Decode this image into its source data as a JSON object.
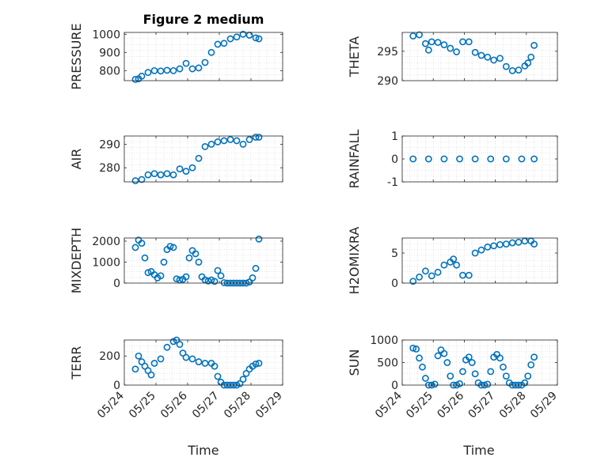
{
  "figure": {
    "title": "Figure 2 medium",
    "xlabel": "Time",
    "marker_color": "#0072BD",
    "xticks": [
      "05/24",
      "05/25",
      "05/26",
      "05/27",
      "05/28",
      "05/29"
    ]
  },
  "chart_data": [
    {
      "type": "scatter",
      "name": "pressure",
      "ylabel": "PRESSURE",
      "ylim": [
        745,
        1010
      ],
      "yticks": [
        800,
        900,
        1000
      ],
      "grid": true,
      "x": [
        0.0,
        0.1,
        0.2,
        0.4,
        0.6,
        0.8,
        1.0,
        1.2,
        1.4,
        1.6,
        1.8,
        2.0,
        2.2,
        2.4,
        2.6,
        2.8,
        3.0,
        3.2,
        3.4,
        3.6,
        3.8,
        3.9
      ],
      "y": [
        752,
        755,
        770,
        790,
        800,
        798,
        802,
        800,
        810,
        840,
        810,
        815,
        845,
        900,
        945,
        950,
        975,
        985,
        1000,
        995,
        980,
        975
      ]
    },
    {
      "type": "scatter",
      "name": "theta",
      "ylabel": "THETA",
      "ylim": [
        290,
        298.2
      ],
      "yticks": [
        290,
        295
      ],
      "grid": true,
      "x": [
        0.0,
        0.2,
        0.4,
        0.5,
        0.6,
        0.8,
        1.0,
        1.2,
        1.4,
        1.6,
        1.8,
        2.0,
        2.2,
        2.4,
        2.6,
        2.8,
        3.0,
        3.2,
        3.4,
        3.6,
        3.7,
        3.8,
        3.9
      ],
      "y": [
        297.6,
        297.8,
        296.3,
        295.2,
        296.6,
        296.5,
        296.1,
        295.5,
        294.9,
        296.6,
        296.6,
        294.8,
        294.3,
        294.0,
        293.5,
        293.8,
        292.4,
        291.7,
        291.8,
        292.5,
        293.0,
        294.0,
        296.0
      ]
    },
    {
      "type": "scatter",
      "name": "air_temp",
      "ylabel": "AIR",
      "ylim": [
        274,
        293.5
      ],
      "yticks": [
        280,
        290
      ],
      "grid": true,
      "x": [
        0.0,
        0.2,
        0.4,
        0.6,
        0.8,
        1.0,
        1.2,
        1.4,
        1.6,
        1.8,
        2.0,
        2.2,
        2.4,
        2.6,
        2.8,
        3.0,
        3.2,
        3.4,
        3.6,
        3.8,
        3.9
      ],
      "y": [
        274.5,
        275.0,
        277.0,
        277.5,
        277.0,
        277.5,
        277.0,
        279.5,
        278.5,
        280.0,
        284.0,
        289.0,
        290.0,
        291.0,
        291.5,
        292.0,
        291.5,
        290.0,
        292.0,
        293.0,
        293.0
      ]
    },
    {
      "type": "scatter",
      "name": "rainfall",
      "ylabel": "RAINFALL",
      "ylim": [
        -1,
        1
      ],
      "yticks": [
        -1,
        0,
        1
      ],
      "grid": true,
      "x": [
        0.0,
        0.5,
        1.0,
        1.5,
        2.0,
        2.5,
        3.0,
        3.5,
        3.9
      ],
      "y": [
        0,
        0,
        0,
        0,
        0,
        0,
        0,
        0,
        0
      ]
    },
    {
      "type": "scatter",
      "name": "mixdepth",
      "ylabel": "MIXDEPTH",
      "ylim": [
        0,
        2150
      ],
      "yticks": [
        0,
        1000,
        2000
      ],
      "grid": true,
      "x": [
        0.0,
        0.1,
        0.2,
        0.3,
        0.4,
        0.5,
        0.6,
        0.7,
        0.8,
        0.9,
        1.0,
        1.1,
        1.2,
        1.3,
        1.4,
        1.5,
        1.6,
        1.7,
        1.8,
        1.9,
        2.0,
        2.1,
        2.2,
        2.3,
        2.4,
        2.5,
        2.6,
        2.7,
        2.8,
        2.9,
        3.0,
        3.1,
        3.2,
        3.3,
        3.4,
        3.5,
        3.6,
        3.7,
        3.8,
        3.9
      ],
      "y": [
        1700,
        2050,
        1900,
        1200,
        500,
        550,
        400,
        250,
        350,
        1000,
        1600,
        1750,
        1700,
        200,
        150,
        180,
        300,
        1200,
        1550,
        1400,
        1000,
        300,
        150,
        100,
        150,
        80,
        600,
        350,
        20,
        0,
        0,
        0,
        0,
        0,
        0,
        0,
        50,
        250,
        700,
        2100
      ]
    },
    {
      "type": "scatter",
      "name": "h2omixra",
      "ylabel": "H2OMIXRA",
      "ylim": [
        0,
        7.5
      ],
      "yticks": [
        0,
        5
      ],
      "grid": true,
      "x": [
        0.0,
        0.2,
        0.4,
        0.6,
        0.8,
        1.0,
        1.2,
        1.3,
        1.4,
        1.6,
        1.8,
        2.0,
        2.2,
        2.4,
        2.6,
        2.8,
        3.0,
        3.2,
        3.4,
        3.6,
        3.8,
        3.9
      ],
      "y": [
        0.3,
        1.0,
        2.0,
        1.2,
        1.8,
        3.0,
        3.5,
        4.0,
        3.0,
        1.3,
        1.3,
        5.0,
        5.5,
        6.0,
        6.2,
        6.4,
        6.5,
        6.7,
        6.8,
        7.0,
        7.0,
        6.5
      ]
    },
    {
      "type": "scatter",
      "name": "terr_msl",
      "ylabel": "TERR",
      "ylim": [
        0,
        310
      ],
      "yticks": [
        0,
        200
      ],
      "grid": true,
      "x": [
        0.0,
        0.1,
        0.2,
        0.3,
        0.4,
        0.5,
        0.6,
        0.8,
        1.0,
        1.2,
        1.3,
        1.4,
        1.5,
        1.6,
        1.8,
        2.0,
        2.2,
        2.4,
        2.5,
        2.6,
        2.7,
        2.8,
        2.9,
        3.0,
        3.1,
        3.2,
        3.3,
        3.4,
        3.5,
        3.6,
        3.7,
        3.8,
        3.9
      ],
      "y": [
        110,
        200,
        160,
        130,
        100,
        70,
        150,
        180,
        260,
        300,
        310,
        280,
        220,
        190,
        180,
        160,
        150,
        150,
        130,
        60,
        20,
        0,
        0,
        0,
        0,
        0,
        10,
        40,
        80,
        110,
        130,
        145,
        150
      ]
    },
    {
      "type": "scatter",
      "name": "sun_flux",
      "ylabel": "SUN",
      "ylim": [
        0,
        1000
      ],
      "yticks": [
        0,
        500,
        1000
      ],
      "grid": true,
      "x": [
        0.0,
        0.1,
        0.2,
        0.3,
        0.4,
        0.5,
        0.6,
        0.7,
        0.8,
        0.9,
        1.0,
        1.1,
        1.2,
        1.3,
        1.4,
        1.5,
        1.6,
        1.7,
        1.8,
        1.9,
        2.0,
        2.1,
        2.2,
        2.3,
        2.4,
        2.5,
        2.6,
        2.7,
        2.8,
        2.9,
        3.0,
        3.1,
        3.2,
        3.3,
        3.4,
        3.5,
        3.6,
        3.7,
        3.8,
        3.9
      ],
      "y": [
        820,
        800,
        600,
        400,
        150,
        0,
        0,
        20,
        650,
        780,
        700,
        500,
        200,
        0,
        0,
        30,
        300,
        560,
        620,
        500,
        250,
        50,
        0,
        0,
        20,
        300,
        620,
        680,
        600,
        400,
        200,
        50,
        0,
        0,
        0,
        0,
        50,
        200,
        450,
        620
      ]
    }
  ]
}
